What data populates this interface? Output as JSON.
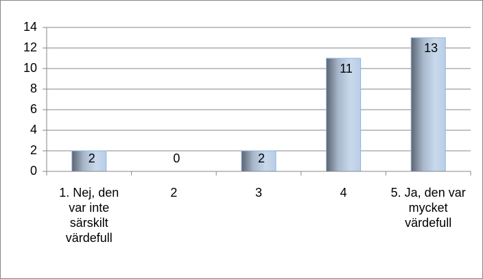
{
  "chart_data": {
    "type": "bar",
    "categories": [
      "1. Nej, den var inte särskilt värdefull",
      "2",
      "3",
      "4",
      "5. Ja, den var mycket värdefull"
    ],
    "values": [
      2,
      0,
      2,
      11,
      13
    ],
    "color": "#b9cde5",
    "ylim": [
      0,
      14
    ],
    "yticks": [
      0,
      2,
      4,
      6,
      8,
      10,
      12,
      14
    ],
    "grid": true
  }
}
